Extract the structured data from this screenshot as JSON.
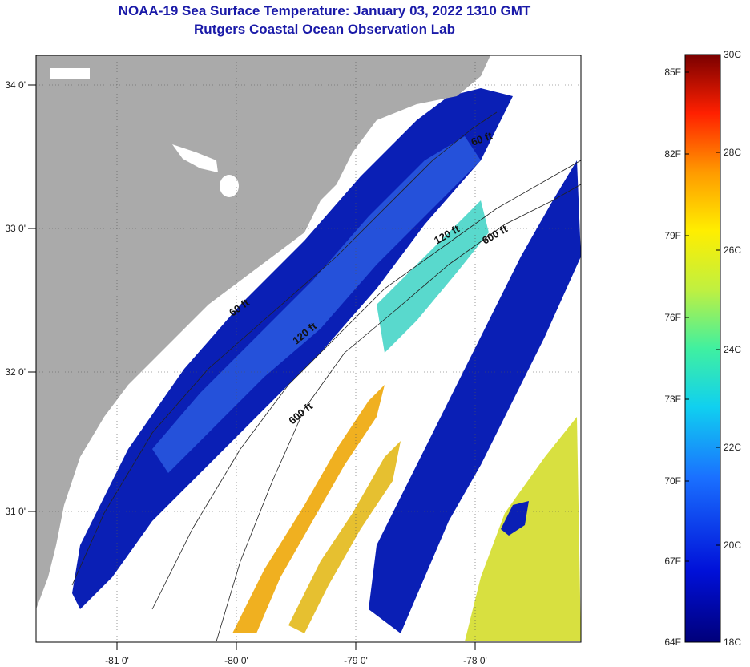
{
  "header": {
    "title": "NOAA-19 Sea Surface Temperature:  January 03, 2022 1310 GMT",
    "subtitle": "Rutgers Coastal Ocean Observation Lab"
  },
  "map": {
    "lon_ticks": [
      "-81 0'",
      "-80 0'",
      "-79 0'",
      "-78 0'"
    ],
    "lat_ticks": [
      "34 0'",
      "33 0'",
      "32 0'",
      "31 0'"
    ],
    "contour_labels": [
      "60 ft",
      "120 ft",
      "600 ft",
      "60 ft",
      "120 ft",
      "600 ft"
    ],
    "colors": {
      "land": "#aaaaaa",
      "cloud": "#ffffff",
      "cold": "#0a1a9a",
      "warm": "#f0b020"
    }
  },
  "colorbar": {
    "fahrenheit": [
      "85F",
      "82F",
      "79F",
      "76F",
      "73F",
      "70F",
      "67F",
      "64F"
    ],
    "celsius": [
      "30C",
      "28C",
      "26C",
      "24C",
      "22C",
      "20C",
      "18C"
    ]
  }
}
